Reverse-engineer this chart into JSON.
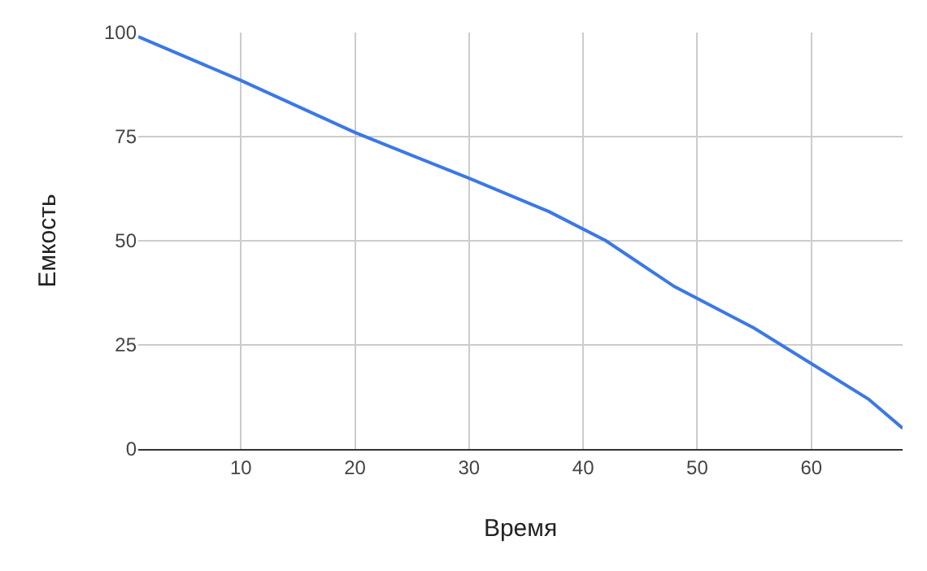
{
  "chart_data": {
    "type": "line",
    "xlabel": "Время",
    "ylabel": "Емкость",
    "x": [
      1,
      10,
      20,
      25,
      30,
      37,
      42,
      48,
      55,
      65,
      68
    ],
    "series": [
      {
        "color": "#3b78e7",
        "values": [
          99,
          88.5,
          76,
          70.5,
          65,
          57,
          50,
          39,
          29,
          12,
          5
        ]
      }
    ],
    "xlim": [
      1,
      68
    ],
    "xticks": [
      10,
      20,
      30,
      40,
      50,
      60
    ],
    "ylim": [
      0,
      100
    ],
    "yticks": [
      0,
      25,
      50,
      75,
      100
    ],
    "grid": true,
    "legend": false,
    "marker": "none",
    "line_style": "solid"
  }
}
